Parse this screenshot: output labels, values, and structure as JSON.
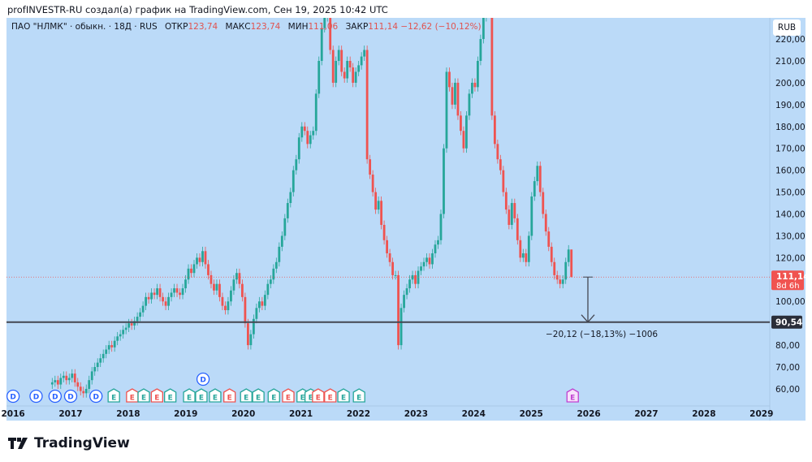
{
  "header": {
    "attribution": "profINVESTR-RU создал(а) график на TradingView.com, Сен 19, 2025 10:42 UTC"
  },
  "legend": {
    "symbol": "ПАО \"НЛМК\" · обыкн. · 18Д · RUS",
    "open_label": "ОТКР",
    "open": "123,74",
    "high_label": "МАКС",
    "high": "123,74",
    "low_label": "МИН",
    "low": "111,06",
    "close_label": "ЗАКР",
    "close": "111,14",
    "change": "−12,62 (−10,12%)"
  },
  "currency": "RUB",
  "current_price": {
    "value": "111,14",
    "countdown": "8d 6h",
    "color": "#f05350"
  },
  "level_line": {
    "value": "90,54",
    "price": 90.54
  },
  "measure_label": "−20,12 (−18,13%) −1006",
  "logo": {
    "text": "TradingView"
  },
  "colors": {
    "background": "#bbdaf8",
    "up": "#26a69a",
    "down": "#ef5350",
    "level": "#434651",
    "dividend": "#2962ff",
    "earnings_up": "#26a69a",
    "earnings_down": "#ef5350",
    "earnings_future": "#c040d0"
  },
  "chart_data": {
    "type": "candlestick",
    "interval": "18D",
    "start": 2016.68,
    "candle_step_years": 0.04928,
    "closes": [
      63,
      64,
      62,
      65,
      66,
      64,
      65,
      67,
      63,
      61,
      59,
      58,
      60,
      64,
      68,
      70,
      72,
      74,
      76,
      78,
      80,
      79,
      82,
      84,
      85,
      87,
      88,
      90,
      89,
      91,
      93,
      95,
      98,
      102,
      101,
      104,
      103,
      106,
      102,
      100,
      98,
      102,
      104,
      106,
      104,
      103,
      106,
      110,
      115,
      113,
      117,
      120,
      118,
      123,
      117,
      112,
      108,
      105,
      108,
      102,
      98,
      96,
      100,
      105,
      110,
      113,
      108,
      102,
      90,
      80,
      85,
      92,
      97,
      100,
      98,
      103,
      108,
      110,
      115,
      118,
      125,
      130,
      138,
      145,
      150,
      160,
      165,
      175,
      180,
      178,
      172,
      176,
      178,
      195,
      210,
      225,
      230,
      235,
      215,
      200,
      210,
      215,
      205,
      202,
      210,
      207,
      200,
      205,
      208,
      212,
      215,
      165,
      158,
      150,
      142,
      146,
      135,
      128,
      122,
      118,
      112,
      112,
      80,
      97,
      103,
      106,
      110,
      112,
      108,
      114,
      116,
      118,
      120,
      117,
      122,
      126,
      128,
      140,
      170,
      205,
      198,
      190,
      200,
      185,
      178,
      170,
      185,
      195,
      200,
      198,
      210,
      220,
      230,
      238,
      240,
      185,
      172,
      165,
      160,
      150,
      142,
      135,
      145,
      138,
      128,
      120,
      122,
      118,
      130,
      148,
      155,
      162,
      150,
      140,
      132,
      125,
      118,
      112,
      110,
      108,
      110,
      118,
      123.74,
      111.14
    ],
    "last_candle": {
      "open": 123.74,
      "high": 123.74,
      "low": 111.06,
      "close": 111.14
    },
    "y_ticks": [
      "220,00",
      "210,00",
      "200,00",
      "190,00",
      "180,00",
      "170,00",
      "160,00",
      "150,00",
      "140,00",
      "130,00",
      "120,00",
      "100,00",
      "80,00",
      "70,00",
      "60,00"
    ],
    "y_tick_values": [
      220,
      210,
      200,
      190,
      180,
      170,
      160,
      150,
      140,
      130,
      120,
      100,
      80,
      70,
      60
    ],
    "x_ticks": [
      "2016",
      "2017",
      "2018",
      "2019",
      "2020",
      "2021",
      "2022",
      "2023",
      "2024",
      "2025",
      "2026",
      "2027",
      "2028",
      "2029"
    ],
    "x_tick_values": [
      2016,
      2017,
      2018,
      2019,
      2020,
      2021,
      2022,
      2023,
      2024,
      2025,
      2026,
      2027,
      2028,
      2029
    ],
    "ylim": [
      55,
      230
    ],
    "xlim": [
      2015.9,
      2029.1
    ],
    "events": {
      "dividends": [
        {
          "date": 2016.0,
          "label": "D"
        },
        {
          "date": 2016.4,
          "label": "D"
        },
        {
          "date": 2016.73,
          "label": "D"
        },
        {
          "date": 2017.0,
          "label": "D"
        },
        {
          "date": 2017.44,
          "label": "D"
        },
        {
          "date": 2019.3,
          "label": "D",
          "raised": true
        }
      ],
      "earnings": [
        {
          "date": 2017.75,
          "label": "E",
          "result": "up"
        },
        {
          "date": 2018.07,
          "label": "E",
          "result": "down"
        },
        {
          "date": 2018.27,
          "label": "E",
          "result": "up"
        },
        {
          "date": 2018.5,
          "label": "E",
          "result": "down"
        },
        {
          "date": 2018.73,
          "label": "E",
          "result": "up"
        },
        {
          "date": 2019.06,
          "label": "E",
          "result": "up"
        },
        {
          "date": 2019.27,
          "label": "E",
          "result": "up"
        },
        {
          "date": 2019.51,
          "label": "E",
          "result": "up"
        },
        {
          "date": 2019.76,
          "label": "E",
          "result": "down"
        },
        {
          "date": 2020.05,
          "label": "E",
          "result": "up"
        },
        {
          "date": 2020.26,
          "label": "E",
          "result": "up"
        },
        {
          "date": 2020.53,
          "label": "E",
          "result": "up"
        },
        {
          "date": 2020.78,
          "label": "E",
          "result": "down"
        },
        {
          "date": 2021.03,
          "label": "E",
          "result": "up"
        },
        {
          "date": 2021.17,
          "label": "E",
          "result": "up"
        },
        {
          "date": 2021.3,
          "label": "E",
          "result": "down"
        },
        {
          "date": 2021.51,
          "label": "E",
          "result": "down"
        },
        {
          "date": 2021.74,
          "label": "E",
          "result": "up"
        },
        {
          "date": 2022.01,
          "label": "E",
          "result": "up"
        },
        {
          "date": 2025.72,
          "label": "E",
          "result": "future"
        }
      ]
    }
  }
}
